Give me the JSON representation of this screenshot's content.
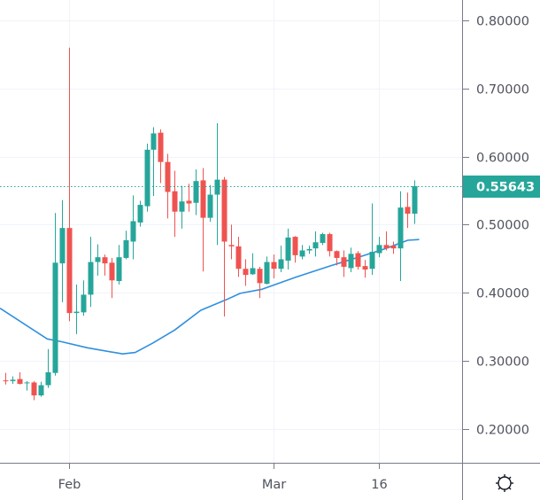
{
  "chart_data": {
    "type": "candlestick",
    "title": "",
    "x_unit": "day offset from Feb 1",
    "x_ticks": [
      {
        "day": 0,
        "label": "Feb"
      },
      {
        "day": 29,
        "label": "Mar"
      },
      {
        "day": 44,
        "label": "16"
      }
    ],
    "y_ticks": [
      "0.80000",
      "0.70000",
      "0.60000",
      "0.50000",
      "0.40000",
      "0.30000",
      "0.20000"
    ],
    "y_tick_values": [
      0.8,
      0.7,
      0.6,
      0.5,
      0.4,
      0.3,
      0.2
    ],
    "ylim": [
      0.15,
      0.83
    ],
    "xlim": [
      -9.8,
      55.8
    ],
    "grid": true,
    "last_price": 0.55643,
    "last_price_label": "0.55643",
    "colors": {
      "up": "#26a69a",
      "down": "#ef5350",
      "ma": "#2f8fde",
      "grid": "#f0f3fa",
      "axis": "#787b86"
    },
    "candles": [
      {
        "day": -9,
        "o": 0.271,
        "h": 0.282,
        "l": 0.265,
        "c": 0.27
      },
      {
        "day": -8,
        "o": 0.27,
        "h": 0.277,
        "l": 0.266,
        "c": 0.272
      },
      {
        "day": -7,
        "o": 0.273,
        "h": 0.283,
        "l": 0.265,
        "c": 0.266
      },
      {
        "day": -6,
        "o": 0.267,
        "h": 0.27,
        "l": 0.256,
        "c": 0.268
      },
      {
        "day": -5,
        "o": 0.268,
        "h": 0.27,
        "l": 0.242,
        "c": 0.249
      },
      {
        "day": -4,
        "o": 0.249,
        "h": 0.269,
        "l": 0.247,
        "c": 0.264
      },
      {
        "day": -3,
        "o": 0.264,
        "h": 0.317,
        "l": 0.26,
        "c": 0.283
      },
      {
        "day": -2,
        "o": 0.282,
        "h": 0.517,
        "l": 0.278,
        "c": 0.444
      },
      {
        "day": -1,
        "o": 0.443,
        "h": 0.536,
        "l": 0.386,
        "c": 0.495
      },
      {
        "day": 0,
        "o": 0.495,
        "h": 0.76,
        "l": 0.358,
        "c": 0.37
      },
      {
        "day": 1,
        "o": 0.37,
        "h": 0.412,
        "l": 0.339,
        "c": 0.372
      },
      {
        "day": 2,
        "o": 0.371,
        "h": 0.418,
        "l": 0.366,
        "c": 0.397
      },
      {
        "day": 3,
        "o": 0.397,
        "h": 0.482,
        "l": 0.379,
        "c": 0.445
      },
      {
        "day": 4,
        "o": 0.445,
        "h": 0.471,
        "l": 0.425,
        "c": 0.452
      },
      {
        "day": 5,
        "o": 0.452,
        "h": 0.456,
        "l": 0.425,
        "c": 0.443
      },
      {
        "day": 6,
        "o": 0.444,
        "h": 0.451,
        "l": 0.392,
        "c": 0.418
      },
      {
        "day": 7,
        "o": 0.417,
        "h": 0.47,
        "l": 0.412,
        "c": 0.452
      },
      {
        "day": 8,
        "o": 0.451,
        "h": 0.491,
        "l": 0.449,
        "c": 0.477
      },
      {
        "day": 9,
        "o": 0.475,
        "h": 0.543,
        "l": 0.449,
        "c": 0.505
      },
      {
        "day": 10,
        "o": 0.503,
        "h": 0.535,
        "l": 0.497,
        "c": 0.529
      },
      {
        "day": 11,
        "o": 0.527,
        "h": 0.619,
        "l": 0.519,
        "c": 0.61
      },
      {
        "day": 12,
        "o": 0.61,
        "h": 0.643,
        "l": 0.542,
        "c": 0.634
      },
      {
        "day": 13,
        "o": 0.635,
        "h": 0.64,
        "l": 0.561,
        "c": 0.592
      },
      {
        "day": 14,
        "o": 0.592,
        "h": 0.604,
        "l": 0.509,
        "c": 0.548
      },
      {
        "day": 15,
        "o": 0.549,
        "h": 0.579,
        "l": 0.482,
        "c": 0.519
      },
      {
        "day": 16,
        "o": 0.519,
        "h": 0.557,
        "l": 0.494,
        "c": 0.534
      },
      {
        "day": 17,
        "o": 0.535,
        "h": 0.56,
        "l": 0.519,
        "c": 0.531
      },
      {
        "day": 18,
        "o": 0.532,
        "h": 0.581,
        "l": 0.514,
        "c": 0.564
      },
      {
        "day": 19,
        "o": 0.565,
        "h": 0.583,
        "l": 0.431,
        "c": 0.51
      },
      {
        "day": 20,
        "o": 0.51,
        "h": 0.558,
        "l": 0.504,
        "c": 0.544
      },
      {
        "day": 21,
        "o": 0.544,
        "h": 0.649,
        "l": 0.47,
        "c": 0.566
      },
      {
        "day": 22,
        "o": 0.566,
        "h": 0.57,
        "l": 0.365,
        "c": 0.475
      },
      {
        "day": 23,
        "o": 0.47,
        "h": 0.5,
        "l": 0.449,
        "c": 0.468
      },
      {
        "day": 24,
        "o": 0.468,
        "h": 0.482,
        "l": 0.423,
        "c": 0.435
      },
      {
        "day": 25,
        "o": 0.435,
        "h": 0.449,
        "l": 0.41,
        "c": 0.426
      },
      {
        "day": 26,
        "o": 0.427,
        "h": 0.458,
        "l": 0.426,
        "c": 0.436
      },
      {
        "day": 27,
        "o": 0.435,
        "h": 0.438,
        "l": 0.392,
        "c": 0.414
      },
      {
        "day": 28,
        "o": 0.413,
        "h": 0.453,
        "l": 0.412,
        "c": 0.445
      },
      {
        "day": 29,
        "o": 0.445,
        "h": 0.456,
        "l": 0.421,
        "c": 0.435
      },
      {
        "day": 30,
        "o": 0.435,
        "h": 0.469,
        "l": 0.43,
        "c": 0.449
      },
      {
        "day": 31,
        "o": 0.447,
        "h": 0.494,
        "l": 0.434,
        "c": 0.481
      },
      {
        "day": 32,
        "o": 0.482,
        "h": 0.483,
        "l": 0.444,
        "c": 0.455
      },
      {
        "day": 33,
        "o": 0.453,
        "h": 0.47,
        "l": 0.449,
        "c": 0.462
      },
      {
        "day": 34,
        "o": 0.462,
        "h": 0.469,
        "l": 0.457,
        "c": 0.464
      },
      {
        "day": 35,
        "o": 0.465,
        "h": 0.49,
        "l": 0.453,
        "c": 0.474
      },
      {
        "day": 36,
        "o": 0.473,
        "h": 0.488,
        "l": 0.47,
        "c": 0.486
      },
      {
        "day": 37,
        "o": 0.486,
        "h": 0.488,
        "l": 0.453,
        "c": 0.461
      },
      {
        "day": 38,
        "o": 0.461,
        "h": 0.462,
        "l": 0.44,
        "c": 0.451
      },
      {
        "day": 39,
        "o": 0.452,
        "h": 0.462,
        "l": 0.423,
        "c": 0.438
      },
      {
        "day": 40,
        "o": 0.436,
        "h": 0.466,
        "l": 0.43,
        "c": 0.457
      },
      {
        "day": 41,
        "o": 0.458,
        "h": 0.461,
        "l": 0.434,
        "c": 0.438
      },
      {
        "day": 42,
        "o": 0.439,
        "h": 0.448,
        "l": 0.422,
        "c": 0.434
      },
      {
        "day": 43,
        "o": 0.435,
        "h": 0.531,
        "l": 0.426,
        "c": 0.46
      },
      {
        "day": 44,
        "o": 0.458,
        "h": 0.482,
        "l": 0.452,
        "c": 0.47
      },
      {
        "day": 45,
        "o": 0.47,
        "h": 0.49,
        "l": 0.462,
        "c": 0.465
      },
      {
        "day": 46,
        "o": 0.469,
        "h": 0.475,
        "l": 0.457,
        "c": 0.465
      },
      {
        "day": 47,
        "o": 0.465,
        "h": 0.549,
        "l": 0.417,
        "c": 0.525
      },
      {
        "day": 48,
        "o": 0.526,
        "h": 0.547,
        "l": 0.495,
        "c": 0.516
      },
      {
        "day": 49,
        "o": 0.516,
        "h": 0.565,
        "l": 0.501,
        "c": 0.55643
      }
    ],
    "moving_average": [
      [
        -9.8,
        0.377
      ],
      [
        -3.1,
        0.332
      ],
      [
        -1.1,
        0.328
      ],
      [
        2.6,
        0.319
      ],
      [
        7.6,
        0.31
      ],
      [
        9.4,
        0.312
      ],
      [
        11.9,
        0.326
      ],
      [
        15,
        0.345
      ],
      [
        18.7,
        0.374
      ],
      [
        22.4,
        0.39
      ],
      [
        24.3,
        0.399
      ],
      [
        27.4,
        0.405
      ],
      [
        32.3,
        0.423
      ],
      [
        37.3,
        0.44
      ],
      [
        41.4,
        0.453
      ],
      [
        44.7,
        0.464
      ],
      [
        48.1,
        0.477
      ],
      [
        49.7,
        0.478
      ]
    ]
  },
  "toolbar": {
    "settings_icon": "gear-icon"
  }
}
